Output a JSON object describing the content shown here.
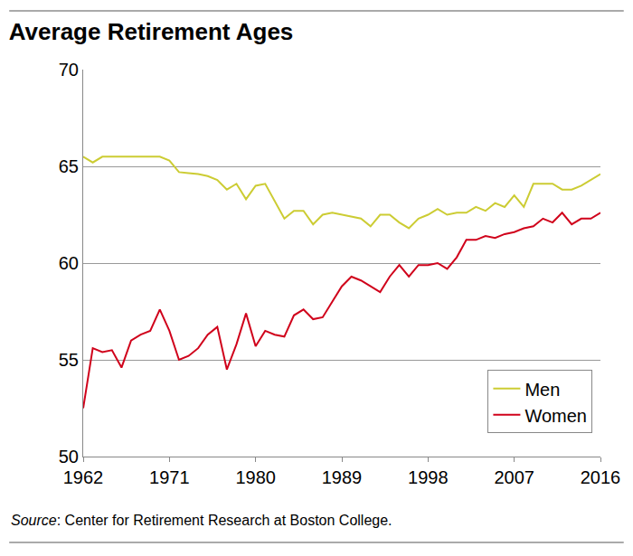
{
  "chart_data": {
    "type": "line",
    "title": "Average Retirement Ages",
    "annotations": [
      "Source: Center for Retirement Research at Boston College."
    ],
    "x": [
      1962,
      1963,
      1964,
      1965,
      1966,
      1967,
      1968,
      1969,
      1970,
      1971,
      1972,
      1973,
      1974,
      1975,
      1976,
      1977,
      1978,
      1979,
      1980,
      1981,
      1982,
      1983,
      1984,
      1985,
      1986,
      1987,
      1988,
      1989,
      1990,
      1991,
      1992,
      1993,
      1994,
      1995,
      1996,
      1997,
      1998,
      1999,
      2000,
      2001,
      2002,
      2003,
      2004,
      2005,
      2006,
      2007,
      2008,
      2009,
      2010,
      2011,
      2012,
      2013,
      2014,
      2015,
      2016
    ],
    "series": [
      {
        "name": "Men",
        "color": "#cccc33",
        "values": [
          65.5,
          65.2,
          65.5,
          65.5,
          65.5,
          65.5,
          65.5,
          65.5,
          65.5,
          65.3,
          64.7,
          64.65,
          64.6,
          64.5,
          64.3,
          63.8,
          64.1,
          63.3,
          64.0,
          64.1,
          63.2,
          62.3,
          62.7,
          62.7,
          62.0,
          62.5,
          62.6,
          62.5,
          62.4,
          62.3,
          61.9,
          62.5,
          62.5,
          62.1,
          61.8,
          62.3,
          62.5,
          62.8,
          62.5,
          62.6,
          62.6,
          62.9,
          62.7,
          63.1,
          62.9,
          63.5,
          62.9,
          64.1,
          64.1,
          64.1,
          63.8,
          63.8,
          64.0,
          64.3,
          64.6
        ]
      },
      {
        "name": "Women",
        "color": "#d0021b",
        "values": [
          52.5,
          55.6,
          55.4,
          55.5,
          54.6,
          56.0,
          56.3,
          56.5,
          57.6,
          56.5,
          55.0,
          55.2,
          55.6,
          56.3,
          56.7,
          54.5,
          55.8,
          57.4,
          55.7,
          56.5,
          56.3,
          56.2,
          57.3,
          57.6,
          57.1,
          57.2,
          58.0,
          58.8,
          59.3,
          59.1,
          58.8,
          58.5,
          59.3,
          59.9,
          59.3,
          59.9,
          59.9,
          60.0,
          59.7,
          60.3,
          61.2,
          61.2,
          61.4,
          61.3,
          61.5,
          61.6,
          61.8,
          61.9,
          62.3,
          62.1,
          62.6,
          62.0,
          62.3,
          62.3,
          62.6
        ]
      }
    ],
    "xlim": [
      1962,
      2016
    ],
    "xticks": [
      1962,
      1971,
      1980,
      1989,
      1998,
      2007,
      2016
    ],
    "ylim": [
      50,
      70
    ],
    "yticks": [
      50,
      55,
      60,
      65,
      70
    ],
    "grid": true,
    "legend": "bottom right"
  }
}
